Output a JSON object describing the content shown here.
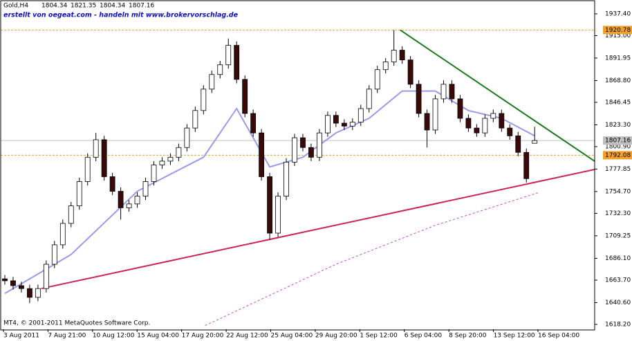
{
  "chart_data": {
    "type": "candlestick",
    "title": "Gold,H4",
    "subtitle": "erstellt von oegeat.com - handeln mit www.brokervorschlag.de",
    "footer": "MT4, © 2001-2011 MetaQuotes Software Corp.",
    "x_labels": [
      "3 Aug 2011",
      "7 Aug 21:00",
      "10 Aug 12:00",
      "15 Aug 04:00",
      "17 Aug 20:00",
      "22 Aug 12:00",
      "25 Aug 04:00",
      "29 Aug 20:00",
      "1 Sep 12:00",
      "6 Sep 04:00",
      "8 Sep 20:00",
      "13 Sep 12:00",
      "16 Sep 04:00"
    ],
    "up_color": "#ffffff",
    "down_color": "#3a0a0a",
    "outline_color": "#000000",
    "open": [
      1665,
      1663,
      1658,
      1655,
      1646,
      1655,
      1680,
      1700,
      1722,
      1740,
      1765,
      1790,
      1808,
      1770,
      1755,
      1738,
      1742,
      1750,
      1765,
      1782,
      1786,
      1790,
      1800,
      1820,
      1838,
      1860,
      1875,
      1885,
      1905,
      1870,
      1835,
      1815,
      1770,
      1712,
      1750,
      1785,
      1810,
      1800,
      1790,
      1815,
      1833,
      1825,
      1822,
      1826,
      1840,
      1860,
      1880,
      1888,
      1900,
      1890,
      1865,
      1835,
      1818,
      1850,
      1865,
      1850,
      1830,
      1820,
      1815,
      1830,
      1835,
      1820,
      1812,
      1795,
      1804.34
    ],
    "high": [
      1669,
      1667,
      1662,
      1659,
      1659,
      1684,
      1704,
      1726,
      1744,
      1769,
      1794,
      1815,
      1812,
      1774,
      1759,
      1746,
      1754,
      1769,
      1786,
      1790,
      1794,
      1804,
      1824,
      1842,
      1864,
      1879,
      1889,
      1912,
      1909,
      1874,
      1839,
      1819,
      1774,
      1754,
      1789,
      1814,
      1814,
      1804,
      1819,
      1837,
      1837,
      1829,
      1830,
      1844,
      1864,
      1884,
      1892,
      1920.78,
      1904,
      1894,
      1869,
      1839,
      1854,
      1869,
      1869,
      1854,
      1834,
      1824,
      1834,
      1839,
      1839,
      1824,
      1816,
      1799,
      1821.35
    ],
    "low": [
      1659,
      1654,
      1651,
      1640,
      1642,
      1651,
      1676,
      1696,
      1718,
      1736,
      1761,
      1786,
      1766,
      1751,
      1726,
      1734,
      1738,
      1746,
      1761,
      1778,
      1782,
      1786,
      1796,
      1816,
      1834,
      1856,
      1871,
      1881,
      1866,
      1831,
      1811,
      1766,
      1705,
      1708,
      1746,
      1781,
      1796,
      1786,
      1786,
      1811,
      1821,
      1818,
      1818,
      1822,
      1836,
      1856,
      1876,
      1884,
      1886,
      1861,
      1831,
      1800,
      1814,
      1846,
      1846,
      1826,
      1816,
      1811,
      1811,
      1826,
      1816,
      1808,
      1791,
      1764,
      1804.34
    ],
    "close": [
      1663,
      1658,
      1655,
      1646,
      1655,
      1680,
      1700,
      1722,
      1740,
      1765,
      1790,
      1808,
      1770,
      1755,
      1738,
      1742,
      1750,
      1765,
      1782,
      1786,
      1790,
      1800,
      1820,
      1838,
      1860,
      1875,
      1885,
      1905,
      1870,
      1835,
      1815,
      1770,
      1712,
      1750,
      1785,
      1810,
      1800,
      1790,
      1815,
      1833,
      1825,
      1822,
      1826,
      1840,
      1860,
      1880,
      1888,
      1900,
      1890,
      1865,
      1835,
      1818,
      1850,
      1865,
      1850,
      1830,
      1820,
      1815,
      1830,
      1835,
      1820,
      1812,
      1795,
      1768,
      1807.16
    ],
    "xlim": [
      -0.5,
      71.25
    ],
    "ylim": [
      1613.2,
      1951.6
    ],
    "yticks": [
      {
        "value": 1937.4,
        "label": "1937.40"
      },
      {
        "value": 1915,
        "label": "1915.00"
      },
      {
        "value": 1891.95,
        "label": "1891.95"
      },
      {
        "value": 1868.8,
        "label": "1868.80"
      },
      {
        "value": 1846.45,
        "label": "1846.45"
      },
      {
        "value": 1823.3,
        "label": "1823.30"
      },
      {
        "value": 1800.9,
        "label": "1800.90"
      },
      {
        "value": 1777.85,
        "label": "1777.85"
      },
      {
        "value": 1754.7,
        "label": "1754.70"
      },
      {
        "value": 1732.3,
        "label": "1732.30"
      },
      {
        "value": 1709.25,
        "label": "1709.25"
      },
      {
        "value": 1686.1,
        "label": "1686.10"
      },
      {
        "value": 1663.7,
        "label": "1663.70"
      },
      {
        "value": 1640.6,
        "label": "1640.60"
      },
      {
        "value": 1618.2,
        "label": "1618.20"
      }
    ],
    "hlines": [
      {
        "value": 1920.78,
        "color": "#f0a030",
        "dashed": true
      },
      {
        "value": 1807.16,
        "color": "#c0c0c0",
        "dashed": false
      },
      {
        "value": 1792.08,
        "color": "#f0a030",
        "dashed": true
      }
    ],
    "lines": [
      {
        "color": "#9999ee",
        "dashed": false,
        "x": [
          0,
          8,
          16,
          24,
          28,
          32,
          36,
          40,
          44,
          48,
          52,
          56,
          60,
          64
        ],
        "values": [
          1650,
          1690,
          1755,
          1790,
          1840,
          1780,
          1790,
          1815,
          1830,
          1858,
          1858,
          1838,
          1830,
          1812
        ]
      },
      {
        "color": "#cc44cc",
        "dashed": true,
        "x": [
          24.2,
          40,
          52,
          64.6
        ],
        "values": [
          1617,
          1680,
          1720,
          1754
        ]
      },
      {
        "color": "#1a7a1a",
        "dashed": false,
        "x": [
          47.75,
          72.1
        ],
        "values": [
          1920.78,
          1781
        ]
      },
      {
        "color": "#cc2255",
        "dashed": false,
        "x": [
          4.4,
          72.1
        ],
        "values": [
          1655,
          1779
        ]
      }
    ]
  }
}
